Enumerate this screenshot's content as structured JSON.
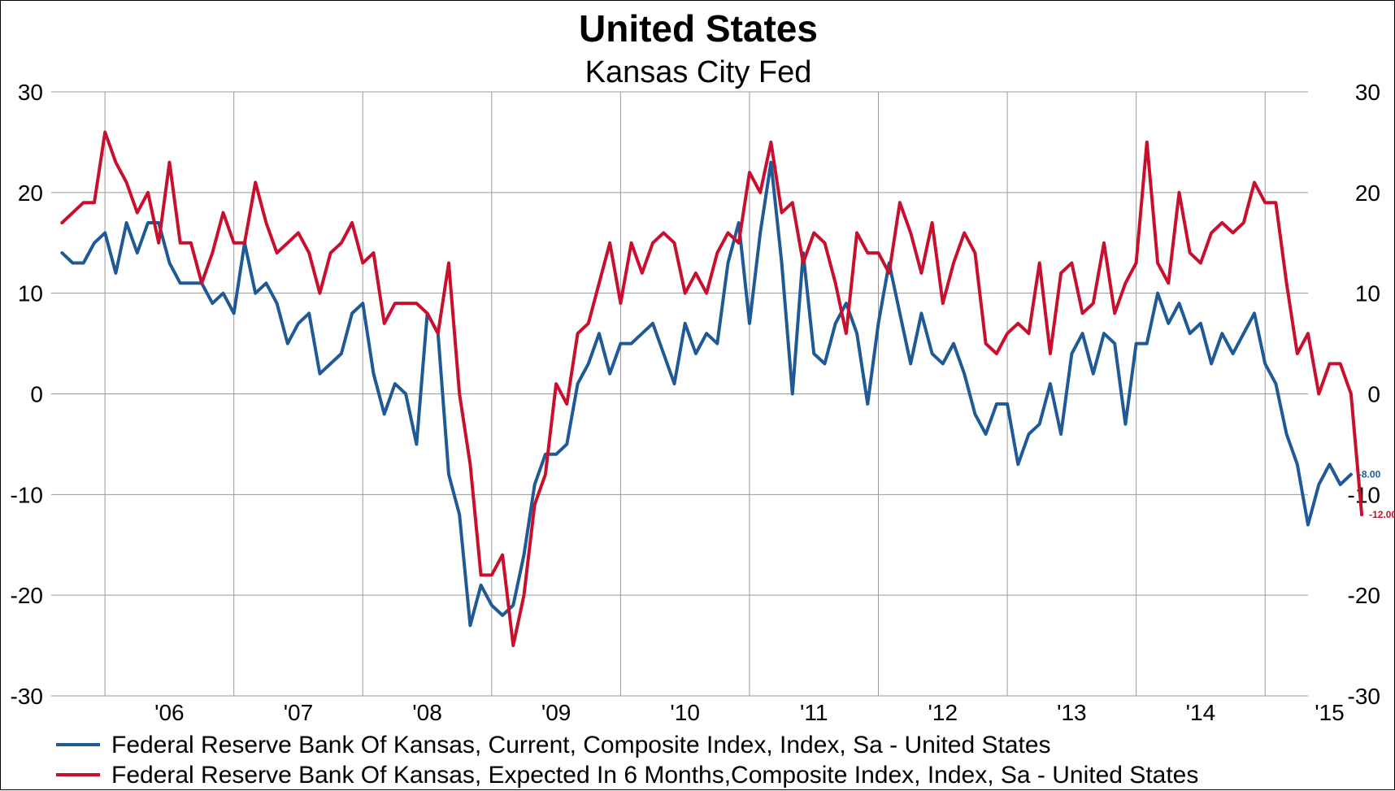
{
  "chart_data": {
    "type": "line",
    "title": "United States",
    "subtitle": "Kansas City Fed",
    "ylim": [
      -30,
      30
    ],
    "yticks": [
      30,
      20,
      10,
      0,
      -10,
      -20,
      -30
    ],
    "ytick_labels": [
      "30",
      "20",
      "10",
      "0",
      "-10",
      "-20",
      "-30"
    ],
    "xlim": [
      2005.583,
      2015.333
    ],
    "xtick_labels": [
      {
        "label": "'06",
        "x": 2006.5
      },
      {
        "label": "'07",
        "x": 2007.5
      },
      {
        "label": "'08",
        "x": 2008.5
      },
      {
        "label": "'09",
        "x": 2009.5
      },
      {
        "label": "'10",
        "x": 2010.5
      },
      {
        "label": "'11",
        "x": 2011.5
      },
      {
        "label": "'12",
        "x": 2012.5
      },
      {
        "label": "'13",
        "x": 2013.5
      },
      {
        "label": "'14",
        "x": 2014.5
      },
      {
        "label": "'15",
        "x": 2015.5
      }
    ],
    "year_gridlines": [
      2006,
      2007,
      2008,
      2009,
      2010,
      2011,
      2012,
      2013,
      2014,
      2015
    ],
    "x_start": 2005.667,
    "x_step": 0.08333,
    "series": [
      {
        "name": "Federal Reserve Bank Of Kansas, Current, Composite Index, Index, Sa - United States",
        "color": "#1f5a96",
        "end_label": "-8.00",
        "values": [
          14,
          13,
          13,
          15,
          16,
          12,
          17,
          14,
          17,
          17,
          13,
          11,
          11,
          11,
          9,
          10,
          8,
          15,
          10,
          11,
          9,
          5,
          7,
          8,
          2,
          3,
          4,
          8,
          9,
          2,
          -2,
          1,
          0,
          -5,
          8,
          6,
          -8,
          -12,
          -23,
          -19,
          -21,
          -22,
          -21,
          -16,
          -9,
          -6,
          -6,
          -5,
          1,
          3,
          6,
          2,
          5,
          5,
          6,
          7,
          4,
          1,
          7,
          4,
          6,
          5,
          13,
          17,
          7,
          16,
          23,
          13,
          0,
          14,
          4,
          3,
          7,
          9,
          6,
          -1,
          7,
          13,
          8,
          3,
          8,
          4,
          3,
          5,
          2,
          -2,
          -4,
          -1,
          -1,
          -7,
          -4,
          -3,
          1,
          -4,
          4,
          6,
          2,
          6,
          5,
          -3,
          5,
          5,
          10,
          7,
          9,
          6,
          7,
          3,
          6,
          4,
          6,
          8,
          3,
          1,
          -4,
          -7,
          -13,
          -9,
          -7,
          -9,
          -8
        ]
      },
      {
        "name": "Federal Reserve Bank Of Kansas, Expected In 6 Months,Composite Index, Index, Sa - United States",
        "color": "#c8102e",
        "end_label": "-12.00",
        "values": [
          17,
          18,
          19,
          19,
          26,
          23,
          21,
          18,
          20,
          15,
          23,
          15,
          15,
          11,
          14,
          18,
          15,
          15,
          21,
          17,
          14,
          15,
          16,
          14,
          10,
          14,
          15,
          17,
          13,
          14,
          7,
          9,
          9,
          9,
          8,
          6,
          13,
          0,
          -7,
          -18,
          -18,
          -16,
          -25,
          -20,
          -11,
          -8,
          1,
          -1,
          6,
          7,
          11,
          15,
          9,
          15,
          12,
          15,
          16,
          15,
          10,
          12,
          10,
          14,
          16,
          15,
          22,
          20,
          25,
          18,
          19,
          13,
          16,
          15,
          11,
          6,
          16,
          14,
          14,
          12,
          19,
          16,
          12,
          17,
          9,
          13,
          16,
          14,
          5,
          4,
          6,
          7,
          6,
          13,
          4,
          12,
          13,
          8,
          9,
          15,
          8,
          11,
          13,
          25,
          13,
          11,
          20,
          14,
          13,
          16,
          17,
          16,
          17,
          21,
          19,
          19,
          11,
          4,
          6,
          0,
          3,
          3,
          0,
          -12
        ]
      }
    ],
    "legend": [
      "Federal Reserve Bank Of Kansas, Current, Composite Index, Index, Sa - United States",
      "Federal Reserve Bank Of Kansas, Expected In 6 Months,Composite Index, Index, Sa - United States"
    ],
    "grid": true,
    "legend_position": "bottom-left"
  }
}
